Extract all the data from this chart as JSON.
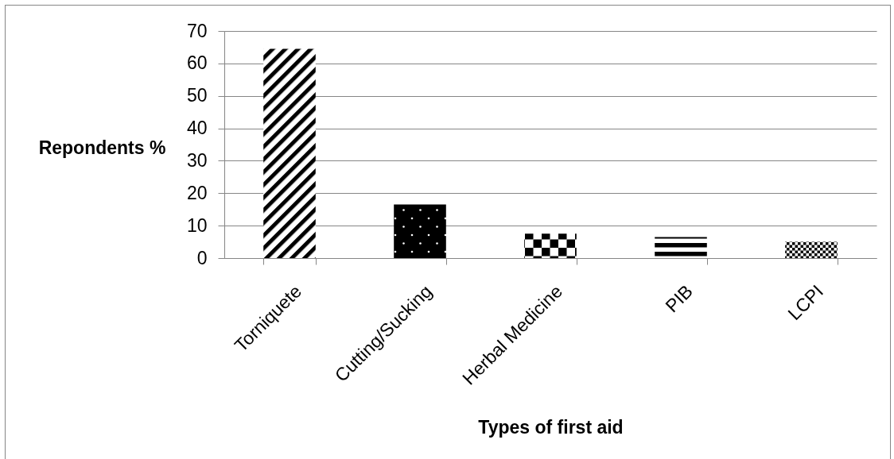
{
  "chart_data": {
    "type": "bar",
    "xlabel": "Types of first aid",
    "ylabel": "Repondents %",
    "categories": [
      "Torniquete",
      "Cutting/Sucking",
      "Herbal Medicine",
      "PIB",
      "LCPI"
    ],
    "values": [
      64.5,
      16.5,
      7.5,
      6.5,
      5
    ],
    "colors": [
      "#000000",
      "#000000",
      "#000000",
      "#000000",
      "#000000"
    ],
    "ylim": [
      0,
      70
    ],
    "yticks": [
      0,
      10,
      20,
      30,
      40,
      50,
      60,
      70
    ],
    "grid": "y",
    "legend": false
  }
}
